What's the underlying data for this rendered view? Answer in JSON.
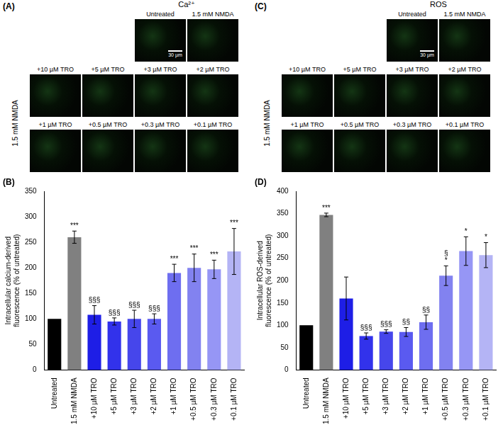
{
  "panels": [
    {
      "panel_label": "(A)",
      "title": "Ca²⁺",
      "header_tiles": [
        "Untreated",
        "1.5 mM NMDA"
      ],
      "scale_bar": "30 µm",
      "row_label": "1.5 mM NMDA",
      "rows": [
        [
          "+10 µM TRO",
          "+5 µM TRO",
          "+3 µM TRO",
          "+2 µM TRO"
        ],
        [
          "+1 µM TRO",
          "+0.5 µM TRO",
          "+0.3 µM TRO",
          "+0.1 µM TRO"
        ]
      ]
    },
    {
      "panel_label": "(C)",
      "title": "ROS",
      "header_tiles": [
        "Untreated",
        "1.5 mM NMDA"
      ],
      "scale_bar": "30 µm",
      "row_label": "1.5 mM NMDA",
      "rows": [
        [
          "+10 µM TRO",
          "+5 µM TRO",
          "+3 µM TRO",
          "+2 µM TRO"
        ],
        [
          "+1 µM TRO",
          "+0.5 µM TRO",
          "+0.3 µM TRO",
          "+0.1 µM TRO"
        ]
      ]
    }
  ],
  "chart_data": [
    {
      "panel_label": "(B)",
      "type": "bar",
      "y_label": "Intracellular calcium-derived fluorescence (% of untreated)",
      "categories": [
        "Untreated",
        "1.5 mM NMDA",
        "+10 µM TRO",
        "+5 µM TRO",
        "+3 µM TRO",
        "+2 µM TRO",
        "+1 µM TRO",
        "+0.5 µM TRO",
        "+0.3 µM TRO",
        "+0.1 µM TRO"
      ],
      "values": [
        100,
        260,
        108,
        95,
        100,
        100,
        190,
        200,
        197,
        232
      ],
      "errors": [
        null,
        12,
        18,
        7,
        17,
        10,
        17,
        27,
        18,
        45
      ],
      "significance": [
        null,
        [
          "***"
        ],
        [
          "§§§"
        ],
        [
          "§§§"
        ],
        [
          "§§§"
        ],
        [
          "§§§"
        ],
        [
          "***"
        ],
        [
          "***"
        ],
        [
          "***"
        ],
        [
          "***"
        ]
      ],
      "colors": [
        "#000000",
        "#808080",
        "#1e1ee6",
        "#3232eb",
        "#4646eb",
        "#5a5af0",
        "#6e6ef0",
        "#8282f0",
        "#9696f5",
        "#b4b4f5"
      ],
      "ylim": [
        0,
        350
      ],
      "yticks": [
        0,
        50,
        100,
        150,
        200,
        250,
        300,
        350
      ],
      "grid": false
    },
    {
      "panel_label": "(D)",
      "type": "bar",
      "y_label": "Intracellular ROS-derived fluorescence (% of untreated)",
      "categories": [
        "Untreated",
        "1.5 mM NMDA",
        "+10 µM TRO",
        "+5 µM TRO",
        "+3 µM TRO",
        "+2 µM TRO",
        "+1 µM TRO",
        "+0.5 µM TRO",
        "+0.3 µM TRO",
        "+0.1 µM TRO"
      ],
      "values": [
        100,
        347,
        160,
        76,
        86,
        85,
        107,
        211,
        266,
        257
      ],
      "errors": [
        null,
        4,
        48,
        7,
        4,
        10,
        16,
        22,
        32,
        28
      ],
      "significance": [
        null,
        [
          "***"
        ],
        null,
        [
          "§§§"
        ],
        [
          "§§§"
        ],
        [
          "§§"
        ],
        [
          "§§"
        ],
        [
          "§",
          "*"
        ],
        [
          "*"
        ],
        [
          "*"
        ]
      ],
      "colors": [
        "#000000",
        "#808080",
        "#1e1ee6",
        "#3232eb",
        "#4646eb",
        "#5a5af0",
        "#6e6ef0",
        "#8282f0",
        "#9696f5",
        "#b4b4f5"
      ],
      "ylim": [
        0,
        400
      ],
      "yticks": [
        0,
        50,
        100,
        150,
        200,
        250,
        300,
        350,
        400
      ],
      "grid": false
    }
  ]
}
